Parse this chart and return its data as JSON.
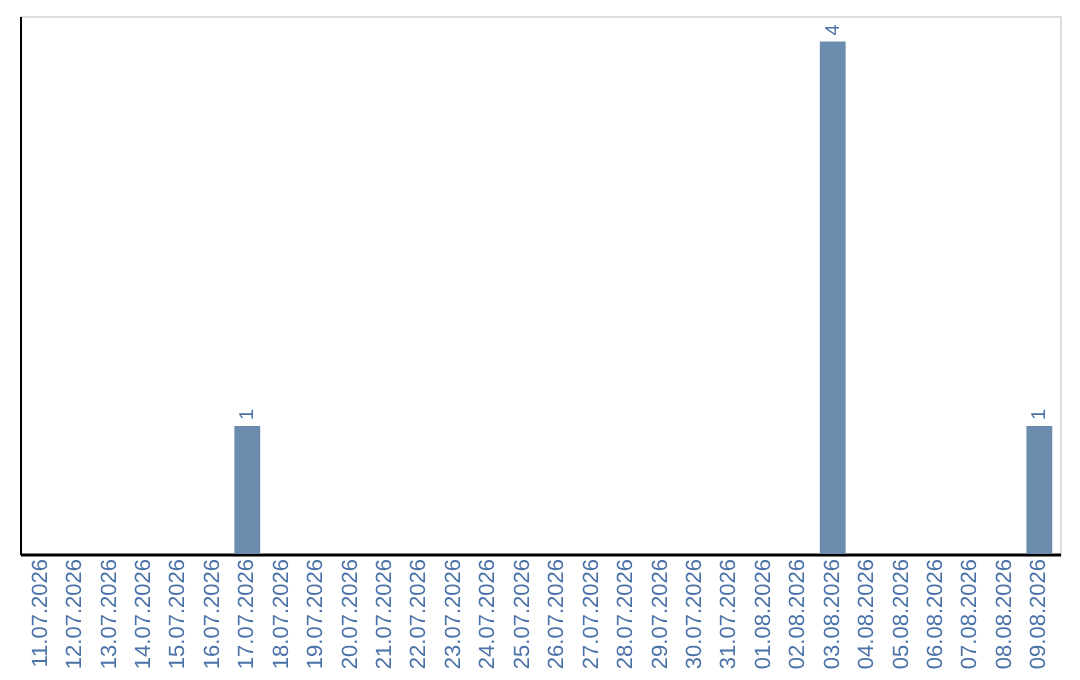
{
  "chart_data": {
    "type": "bar",
    "categories": [
      "11.07.2026",
      "12.07.2026",
      "13.07.2026",
      "14.07.2026",
      "15.07.2026",
      "16.07.2026",
      "17.07.2026",
      "18.07.2026",
      "19.07.2026",
      "20.07.2026",
      "21.07.2026",
      "22.07.2026",
      "23.07.2026",
      "24.07.2026",
      "25.07.2026",
      "26.07.2026",
      "27.07.2026",
      "28.07.2026",
      "29.07.2026",
      "30.07.2026",
      "31.07.2026",
      "01.08.2026",
      "02.08.2026",
      "03.08.2026",
      "04.08.2026",
      "05.08.2026",
      "06.08.2026",
      "07.08.2026",
      "08.08.2026",
      "09.08.2026"
    ],
    "values": [
      0,
      0,
      0,
      0,
      0,
      0,
      1,
      0,
      0,
      0,
      0,
      0,
      0,
      0,
      0,
      0,
      0,
      0,
      0,
      0,
      0,
      0,
      0,
      4,
      0,
      0,
      0,
      0,
      0,
      1
    ],
    "value_labels": [
      null,
      null,
      null,
      null,
      null,
      null,
      "1",
      null,
      null,
      null,
      null,
      null,
      null,
      null,
      null,
      null,
      null,
      null,
      null,
      null,
      null,
      null,
      null,
      "4",
      null,
      null,
      null,
      null,
      null,
      "1"
    ],
    "color": "#6b8cac",
    "ylim": [
      0,
      4.2
    ],
    "tick_labels": "x",
    "grid": false
  }
}
